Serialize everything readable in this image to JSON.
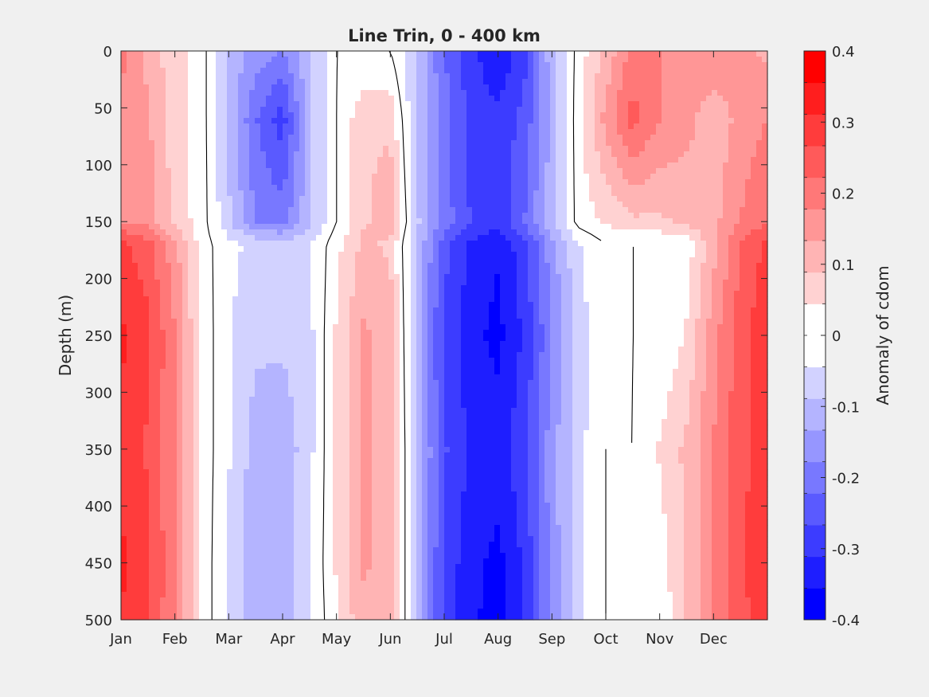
{
  "chart_data": {
    "type": "heatmap",
    "subtype": "filled-contour",
    "title": "Line Trin, 0 - 400 km",
    "xlabel": "",
    "ylabel": "Depth (m)",
    "colorbar_label": "Anomaly of cdom",
    "x_ticks": [
      "Jan",
      "Feb",
      "Mar",
      "Apr",
      "May",
      "Jun",
      "Jul",
      "Aug",
      "Sep",
      "Oct",
      "Nov",
      "Dec"
    ],
    "x_tick_positions_month": [
      1,
      2,
      3,
      4,
      5,
      6,
      7,
      8,
      9,
      10,
      11,
      12
    ],
    "xlim_month": [
      1,
      13
    ],
    "y_ticks": [
      "0",
      "50",
      "100",
      "150",
      "200",
      "250",
      "300",
      "350",
      "400",
      "450",
      "500"
    ],
    "ylim": [
      0,
      500
    ],
    "y_reversed": true,
    "clim": [
      -0.4,
      0.4
    ],
    "colorbar_ticks": [
      "0.4",
      "0.3",
      "0.2",
      "0.1",
      "0",
      "-0.1",
      "-0.2",
      "-0.3",
      "-0.4"
    ],
    "colorbar_levels": 18,
    "colormap": {
      "negative": "#0000ff",
      "zero": "#ffffff",
      "positive": "#ff0000"
    },
    "zero_contour_color": "#000000",
    "grid": false,
    "depths": [
      0,
      60,
      150,
      170,
      250,
      350,
      450,
      500
    ],
    "months": [
      1,
      1.5,
      2,
      2.5,
      3,
      3.5,
      4,
      4.5,
      5,
      5.5,
      6,
      6.5,
      7,
      7.5,
      8,
      8.5,
      9,
      9.5,
      10,
      10.5,
      11,
      11.5,
      12,
      12.5,
      13
    ],
    "anomaly": [
      [
        0.2,
        0.12,
        0.06,
        0.02,
        -0.1,
        -0.15,
        -0.18,
        -0.1,
        0.0,
        0.0,
        0.0,
        -0.1,
        -0.22,
        -0.3,
        -0.35,
        -0.28,
        -0.1,
        0.02,
        0.1,
        0.2,
        0.18,
        0.16,
        0.18,
        0.15,
        0.12
      ],
      [
        0.15,
        0.14,
        0.06,
        0.02,
        -0.1,
        -0.22,
        -0.29,
        -0.1,
        0.0,
        0.08,
        0.08,
        -0.1,
        -0.2,
        -0.28,
        -0.3,
        -0.25,
        -0.12,
        0.03,
        0.15,
        0.24,
        0.18,
        0.15,
        0.1,
        0.15,
        0.18
      ],
      [
        0.18,
        0.16,
        0.08,
        0.02,
        -0.08,
        -0.18,
        -0.2,
        -0.1,
        0.0,
        0.08,
        0.12,
        -0.08,
        -0.2,
        -0.27,
        -0.3,
        -0.22,
        -0.1,
        0.02,
        0.05,
        0.08,
        0.08,
        0.1,
        0.12,
        0.18,
        0.22
      ],
      [
        0.28,
        0.24,
        0.15,
        0.02,
        -0.03,
        -0.06,
        -0.06,
        -0.05,
        0.03,
        0.1,
        0.08,
        -0.1,
        -0.25,
        -0.32,
        -0.35,
        -0.28,
        -0.15,
        -0.05,
        0.0,
        0.0,
        0.0,
        0.02,
        0.12,
        0.22,
        0.28
      ],
      [
        0.32,
        0.28,
        0.18,
        0.03,
        -0.04,
        -0.08,
        -0.08,
        -0.06,
        0.05,
        0.14,
        0.12,
        -0.12,
        -0.28,
        -0.34,
        -0.37,
        -0.3,
        -0.18,
        -0.06,
        -0.02,
        0.0,
        0.0,
        0.05,
        0.16,
        0.25,
        0.3
      ],
      [
        0.3,
        0.26,
        0.18,
        0.03,
        -0.04,
        -0.11,
        -0.12,
        -0.06,
        0.05,
        0.14,
        0.12,
        -0.1,
        -0.26,
        -0.32,
        -0.33,
        -0.28,
        -0.15,
        -0.06,
        0.0,
        0.0,
        0.05,
        0.1,
        0.18,
        0.25,
        0.3
      ],
      [
        0.32,
        0.28,
        0.18,
        0.03,
        -0.05,
        -0.13,
        -0.12,
        -0.05,
        0.05,
        0.14,
        0.12,
        -0.1,
        -0.28,
        -0.34,
        -0.37,
        -0.3,
        -0.16,
        -0.06,
        0.0,
        0.0,
        0.02,
        0.1,
        0.18,
        0.26,
        0.3
      ],
      [
        0.31,
        0.27,
        0.18,
        0.03,
        -0.05,
        -0.12,
        -0.12,
        -0.05,
        0.04,
        0.12,
        0.12,
        -0.1,
        -0.28,
        -0.35,
        -0.37,
        -0.3,
        -0.16,
        -0.06,
        0.0,
        0.0,
        0.0,
        0.1,
        0.18,
        0.25,
        0.3
      ]
    ]
  }
}
